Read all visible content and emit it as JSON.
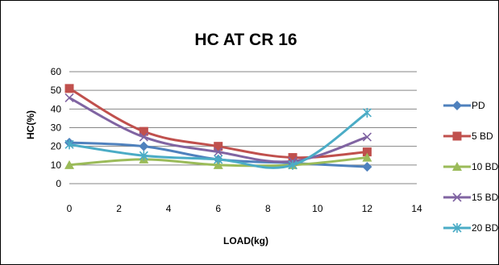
{
  "chart_data": {
    "type": "line",
    "title": "HC AT CR 16",
    "xlabel": "LOAD(kg)",
    "ylabel": "HC(%)",
    "xlim": [
      0,
      14
    ],
    "ylim": [
      0,
      60
    ],
    "xticks": [
      0,
      2,
      4,
      6,
      8,
      10,
      12,
      14
    ],
    "yticks": [
      0,
      10,
      20,
      30,
      40,
      50,
      60
    ],
    "grid": "horizontal",
    "legend_position": "right",
    "x": [
      0,
      3,
      6,
      9,
      12
    ],
    "series": [
      {
        "name": "PD",
        "values": [
          22,
          20,
          13,
          11,
          9
        ],
        "color": "#4F81BD",
        "marker": "diamond"
      },
      {
        "name": "5 BD",
        "values": [
          51,
          28,
          20,
          14,
          17
        ],
        "color": "#C0504D",
        "marker": "square"
      },
      {
        "name": "10 BD",
        "values": [
          10,
          13,
          10,
          10,
          14
        ],
        "color": "#9BBB59",
        "marker": "triangle"
      },
      {
        "name": "15 BD",
        "values": [
          46,
          25,
          17,
          12,
          25
        ],
        "color": "#8064A2",
        "marker": "x"
      },
      {
        "name": "20 BD",
        "values": [
          21,
          15,
          13,
          10,
          38
        ],
        "color": "#4BACC6",
        "marker": "star"
      }
    ]
  }
}
